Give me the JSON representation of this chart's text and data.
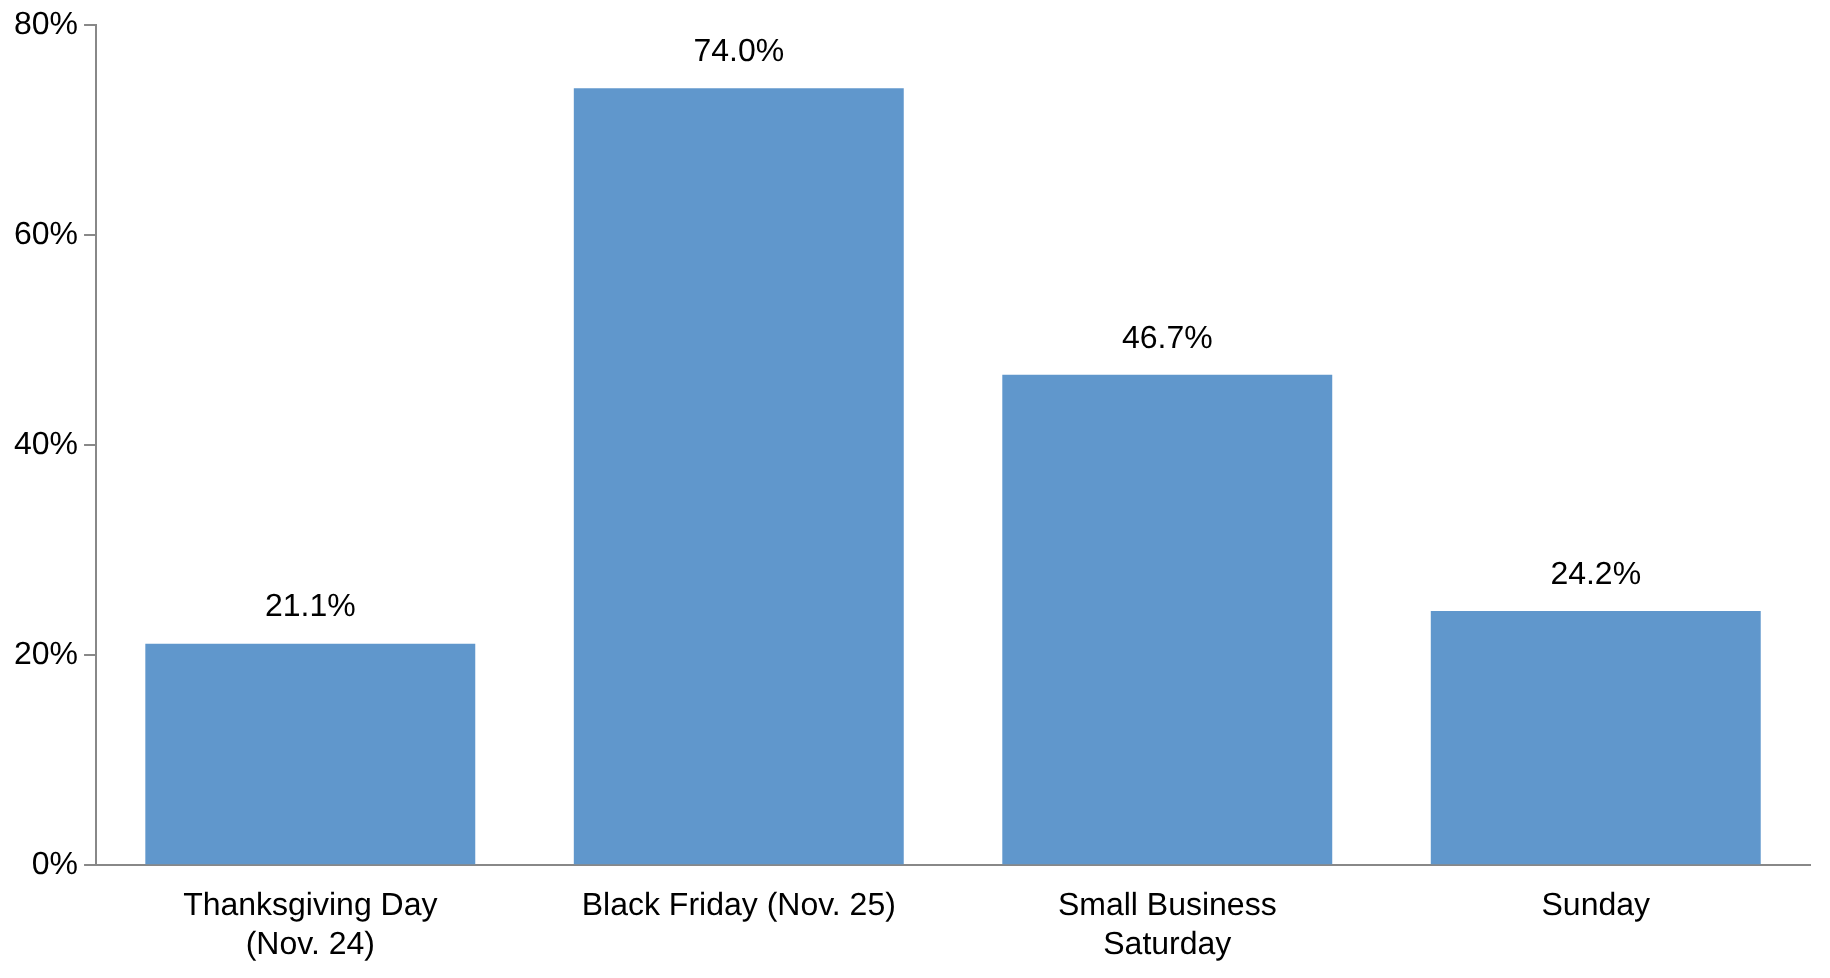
{
  "chart_data": {
    "type": "bar",
    "categories": [
      "Thanksgiving Day\n(Nov. 24)",
      "Black Friday (Nov. 25)",
      "Small Business\nSaturday",
      "Sunday"
    ],
    "values": [
      21.1,
      74.0,
      46.7,
      24.2
    ],
    "value_labels": [
      "21.1%",
      "74.0%",
      "46.7%",
      "24.2%"
    ],
    "color": "#6097cc",
    "ylim": [
      0,
      80
    ],
    "yticks": [
      {
        "value": 0,
        "label": "0%"
      },
      {
        "value": 20,
        "label": "20%"
      },
      {
        "value": 40,
        "label": "40%"
      },
      {
        "value": 60,
        "label": "60%"
      },
      {
        "value": 80,
        "label": "80%"
      }
    ],
    "grid": false,
    "legend": false
  }
}
